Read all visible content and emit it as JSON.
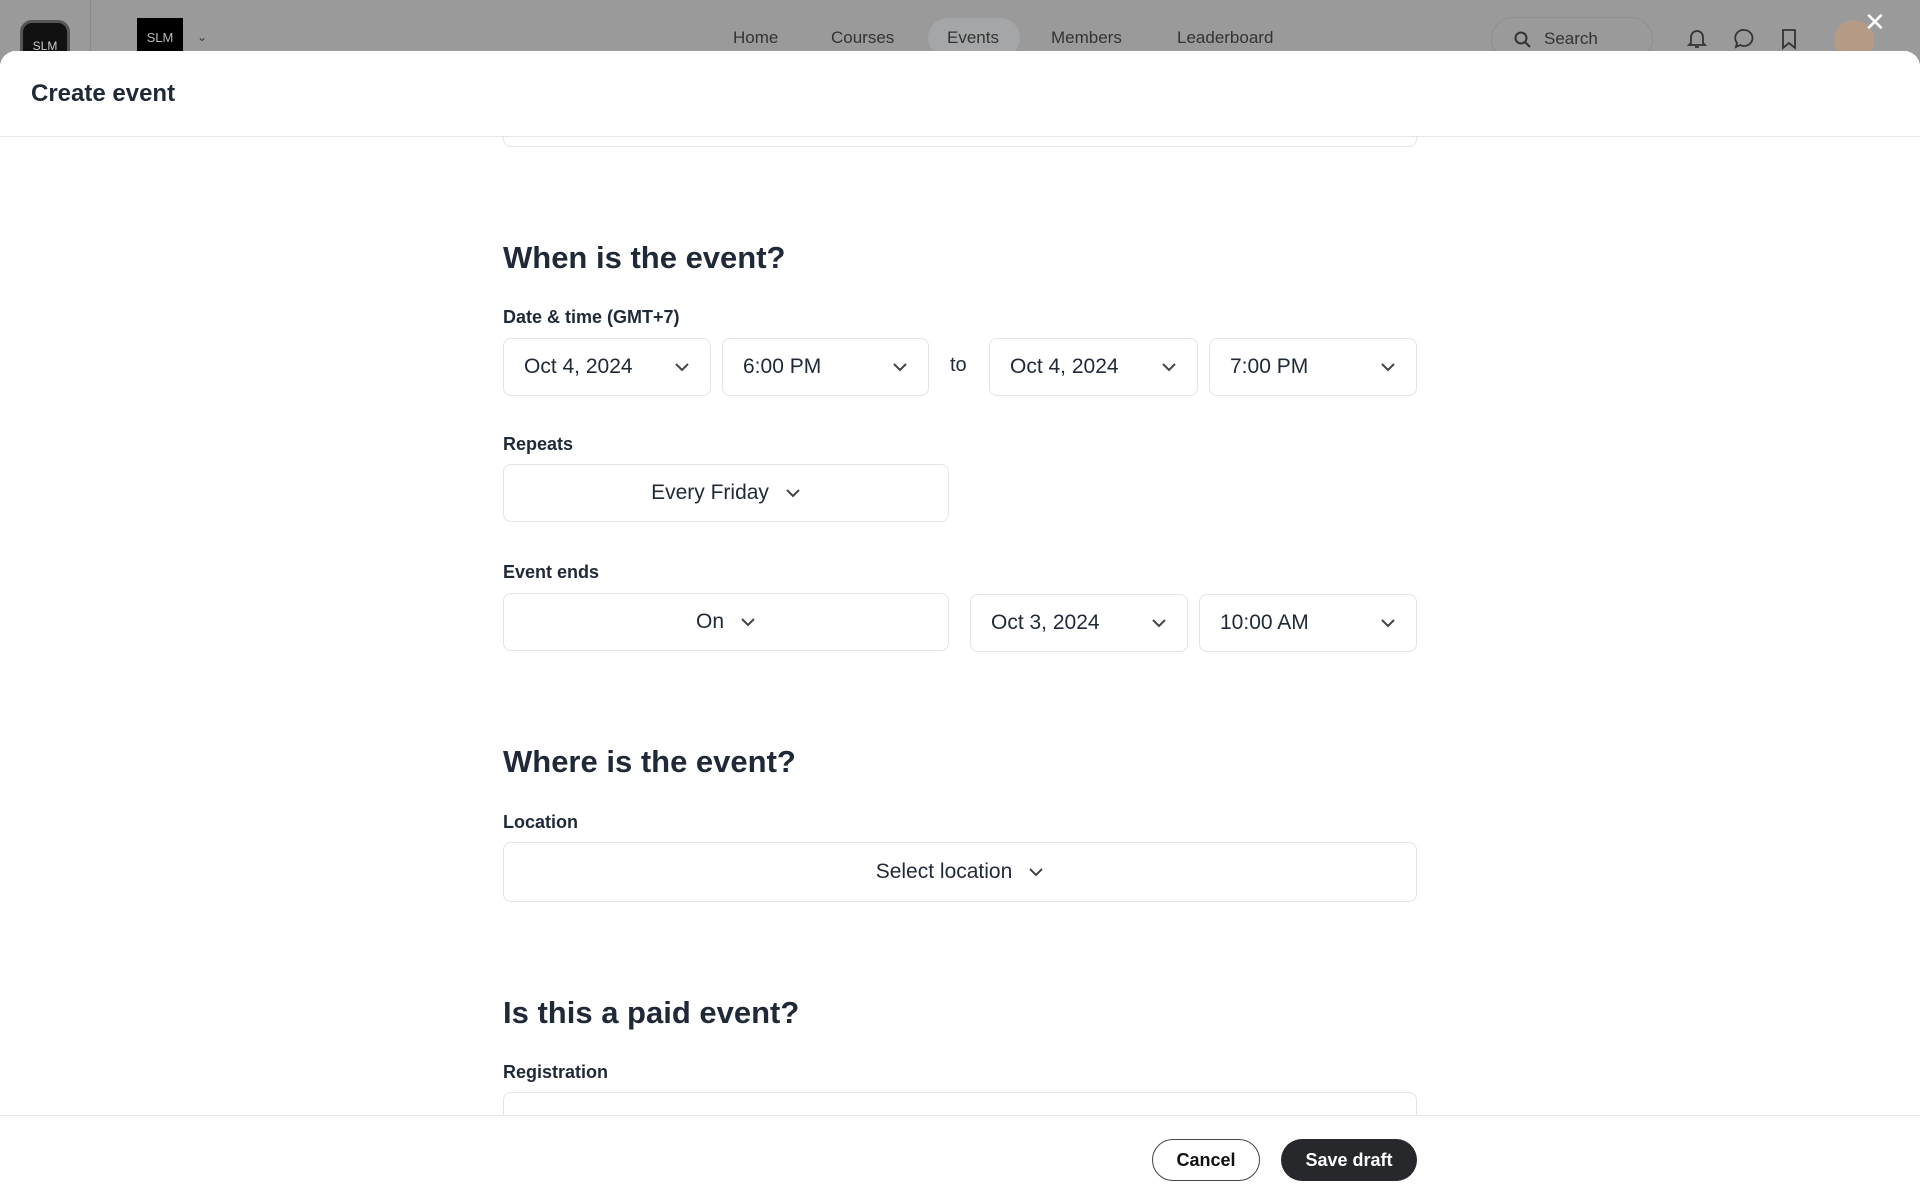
{
  "app": {
    "logo_text": "SLM",
    "nav": [
      "Home",
      "Courses",
      "Events",
      "Members",
      "Leaderboard"
    ],
    "active_nav": "Events",
    "search_placeholder": "Search"
  },
  "modal": {
    "title": "Create event",
    "when": {
      "heading": "When is the event?",
      "datetime_label": "Date & time (GMT+7)",
      "start_date": "Oct 4, 2024",
      "start_time": "6:00 PM",
      "to": "to",
      "end_date": "Oct 4, 2024",
      "end_time": "7:00 PM",
      "repeats_label": "Repeats",
      "repeats_value": "Every Friday",
      "ends_label": "Event ends",
      "ends_mode": "On",
      "ends_date": "Oct 3, 2024",
      "ends_time": "10:00 AM"
    },
    "where": {
      "heading": "Where is the event?",
      "location_label": "Location",
      "location_placeholder": "Select location"
    },
    "paid": {
      "heading": "Is this a paid event?",
      "registration_label": "Registration"
    },
    "footer": {
      "cancel": "Cancel",
      "save": "Save draft"
    }
  }
}
